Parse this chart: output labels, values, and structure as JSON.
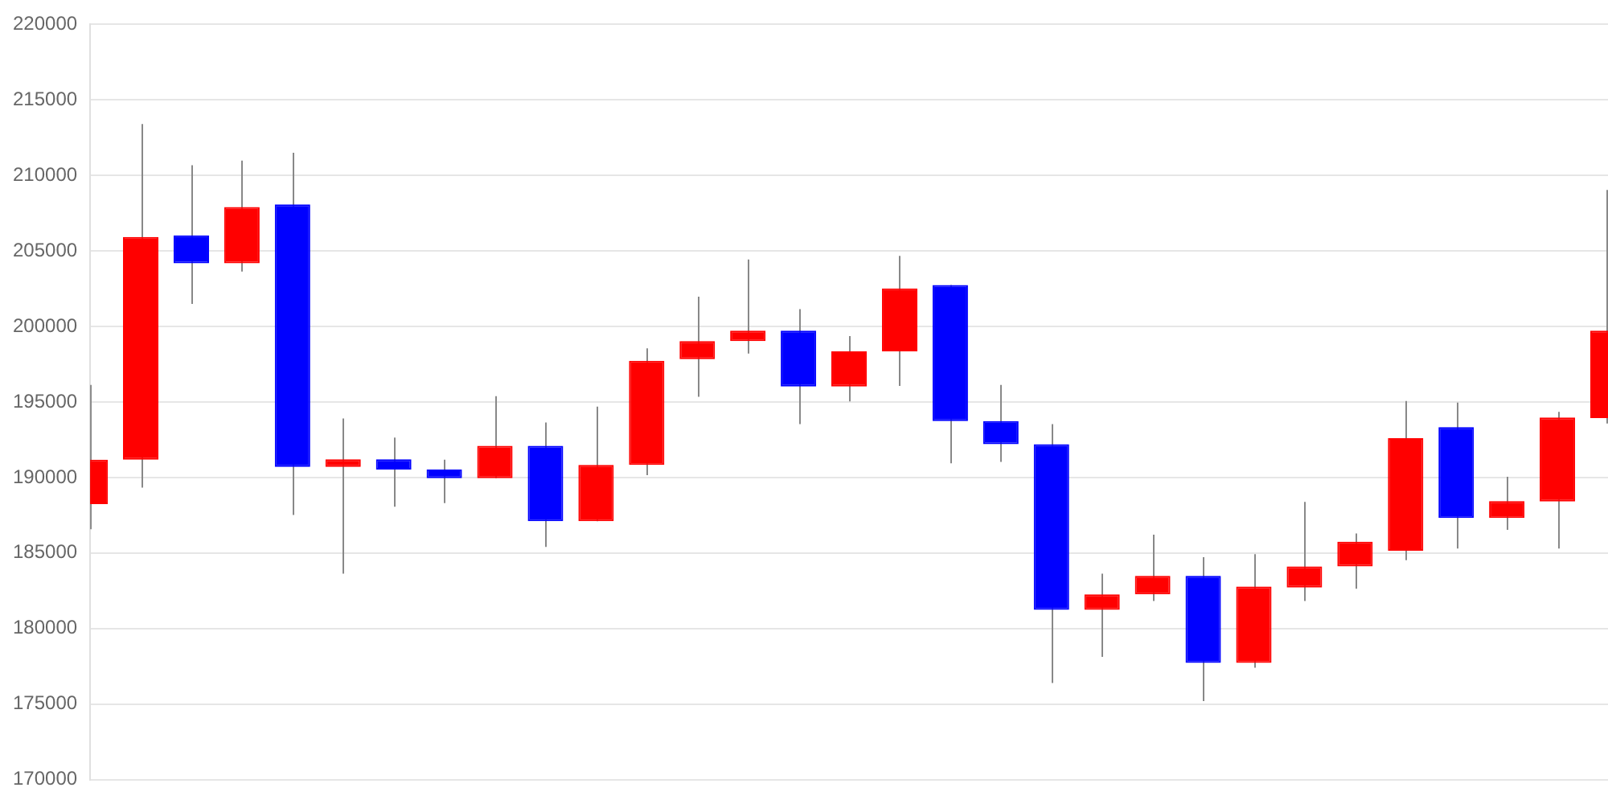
{
  "chart_data": {
    "type": "candlestick",
    "categories": [
      null,
      null,
      null,
      null,
      null,
      null,
      null,
      null,
      null,
      null,
      null,
      null,
      null,
      null,
      null,
      null,
      null,
      null,
      null,
      null,
      null,
      null,
      null,
      null,
      null,
      null,
      null,
      null,
      null,
      null,
      null
    ],
    "ohlc": [
      [
        188240,
        196130,
        186570,
        191180
      ],
      [
        191180,
        213410,
        189330,
        205930
      ],
      [
        206030,
        210680,
        201490,
        204190
      ],
      [
        204190,
        210980,
        203640,
        207910
      ],
      [
        208080,
        211500,
        187520,
        190700
      ],
      [
        190700,
        193910,
        183630,
        191210
      ],
      [
        191210,
        192650,
        188070,
        190530
      ],
      [
        190530,
        191180,
        188310,
        189950
      ],
      [
        189950,
        195380,
        189950,
        192100
      ],
      [
        192100,
        193640,
        185410,
        187110
      ],
      [
        187110,
        194690,
        187110,
        190840
      ],
      [
        190840,
        198550,
        190150,
        197730
      ],
      [
        197840,
        201970,
        195340,
        199030
      ],
      [
        199030,
        204430,
        198210,
        199720
      ],
      [
        199720,
        201150,
        193530,
        196030
      ],
      [
        196030,
        199370,
        195040,
        198350
      ],
      [
        198350,
        204670,
        196060,
        202520
      ],
      [
        202750,
        202750,
        190940,
        193740
      ],
      [
        193740,
        196130,
        191040,
        192200
      ],
      [
        192200,
        193530,
        176390,
        181240
      ],
      [
        181240,
        183630,
        178130,
        182260
      ],
      [
        182260,
        186220,
        181820,
        183490
      ],
      [
        183490,
        184720,
        175200,
        177720
      ],
      [
        177720,
        184930,
        177410,
        182780
      ],
      [
        182710,
        188380,
        181820,
        184110
      ],
      [
        184110,
        186290,
        182640,
        185750
      ],
      [
        185150,
        195060,
        184530,
        192600
      ],
      [
        193330,
        194960,
        185300,
        187320
      ],
      [
        187320,
        190050,
        186530,
        188440
      ],
      [
        188410,
        194350,
        185300,
        193980
      ],
      [
        193940,
        209040,
        193570,
        199720
      ]
    ],
    "colors": [
      "#ff0000",
      "#ff0000",
      "#0000ff",
      "#ff0000",
      "#0000ff",
      "#ff0000",
      "#0000ff",
      "#0000ff",
      "#ff0000",
      "#0000ff",
      "#ff0000",
      "#ff0000",
      "#ff0000",
      "#ff0000",
      "#0000ff",
      "#ff0000",
      "#ff0000",
      "#0000ff",
      "#0000ff",
      "#0000ff",
      "#ff0000",
      "#ff0000",
      "#0000ff",
      "#ff0000",
      "#ff0000",
      "#ff0000",
      "#ff0000",
      "#0000ff",
      "#ff0000",
      "#ff0000",
      "#ff0000"
    ],
    "ylim": [
      170000,
      220000
    ],
    "yticks": [
      170000,
      175000,
      180000,
      185000,
      190000,
      195000,
      200000,
      205000,
      210000,
      215000,
      220000
    ],
    "grid": "y",
    "tick_labels": "y",
    "legend": false
  }
}
